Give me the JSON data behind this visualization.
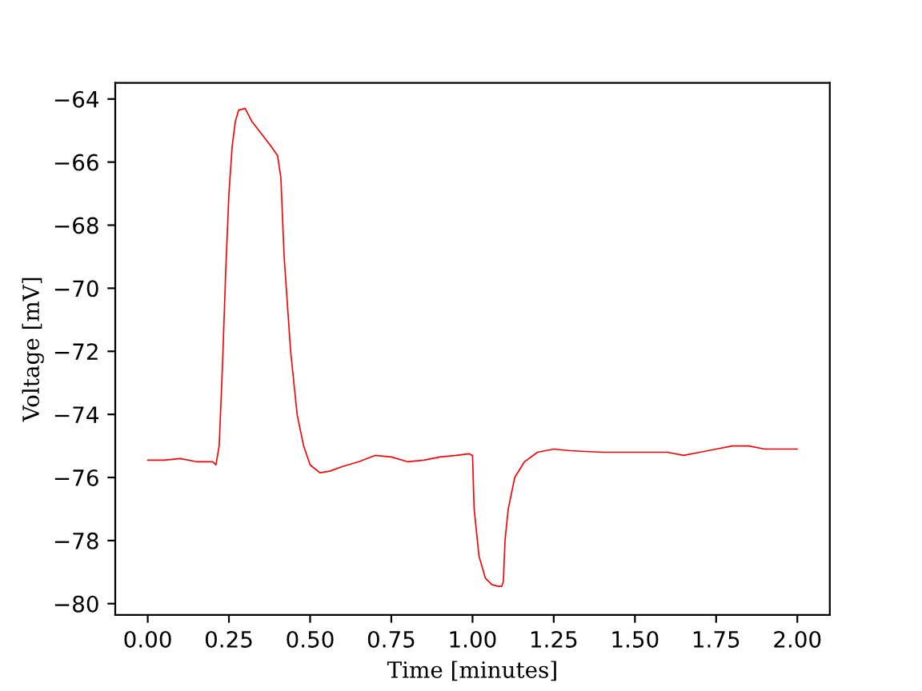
{
  "chart_data": {
    "type": "line",
    "xlabel": "Time [minutes]",
    "ylabel": "Voltage [mV]",
    "xlim": [
      -0.1,
      2.1
    ],
    "ylim": [
      -80.36,
      -63.49
    ],
    "xticks": [
      {
        "value": 0,
        "label": "0.00"
      },
      {
        "value": 0.25,
        "label": "0.25"
      },
      {
        "value": 0.5,
        "label": "0.50"
      },
      {
        "value": 0.75,
        "label": "0.75"
      },
      {
        "value": 1,
        "label": "1.00"
      },
      {
        "value": 1.25,
        "label": "1.25"
      },
      {
        "value": 1.5,
        "label": "1.50"
      },
      {
        "value": 1.75,
        "label": "1.75"
      },
      {
        "value": 2,
        "label": "2.00"
      }
    ],
    "yticks": [
      {
        "value": -80,
        "label": "−80"
      },
      {
        "value": -78,
        "label": "−78"
      },
      {
        "value": -76,
        "label": "−76"
      },
      {
        "value": -74,
        "label": "−74"
      },
      {
        "value": -72,
        "label": "−72"
      },
      {
        "value": -70,
        "label": "−70"
      },
      {
        "value": -68,
        "label": "−68"
      },
      {
        "value": -66,
        "label": "−66"
      },
      {
        "value": -64,
        "label": "−64"
      }
    ],
    "grid": false,
    "marker": "none",
    "line_style": "solid",
    "series": [
      {
        "color": "#ff0000",
        "x": [
          0.0,
          0.05,
          0.1,
          0.15,
          0.2,
          0.21,
          0.22,
          0.23,
          0.24,
          0.25,
          0.26,
          0.27,
          0.28,
          0.3,
          0.32,
          0.35,
          0.38,
          0.4,
          0.41,
          0.42,
          0.44,
          0.46,
          0.48,
          0.5,
          0.53,
          0.56,
          0.6,
          0.65,
          0.7,
          0.75,
          0.8,
          0.85,
          0.9,
          0.95,
          0.99,
          1.0,
          1.005,
          1.02,
          1.04,
          1.06,
          1.08,
          1.09,
          1.095,
          1.1,
          1.11,
          1.13,
          1.16,
          1.2,
          1.25,
          1.3,
          1.4,
          1.5,
          1.6,
          1.65,
          1.7,
          1.75,
          1.8,
          1.85,
          1.9,
          1.95,
          2.0
        ],
        "values": [
          -75.45,
          -75.45,
          -75.4,
          -75.5,
          -75.5,
          -75.6,
          -75.0,
          -72.5,
          -69.5,
          -67.0,
          -65.5,
          -64.7,
          -64.35,
          -64.3,
          -64.7,
          -65.1,
          -65.5,
          -65.8,
          -66.5,
          -69.0,
          -72.0,
          -74.0,
          -75.0,
          -75.6,
          -75.85,
          -75.8,
          -75.65,
          -75.5,
          -75.3,
          -75.35,
          -75.5,
          -75.45,
          -75.35,
          -75.3,
          -75.25,
          -75.3,
          -77.0,
          -78.5,
          -79.2,
          -79.4,
          -79.45,
          -79.45,
          -79.3,
          -78.0,
          -77.0,
          -76.0,
          -75.5,
          -75.2,
          -75.1,
          -75.15,
          -75.2,
          -75.2,
          -75.2,
          -75.3,
          -75.2,
          -75.1,
          -75.0,
          -75.0,
          -75.1,
          -75.1,
          -75.1
        ]
      }
    ]
  }
}
